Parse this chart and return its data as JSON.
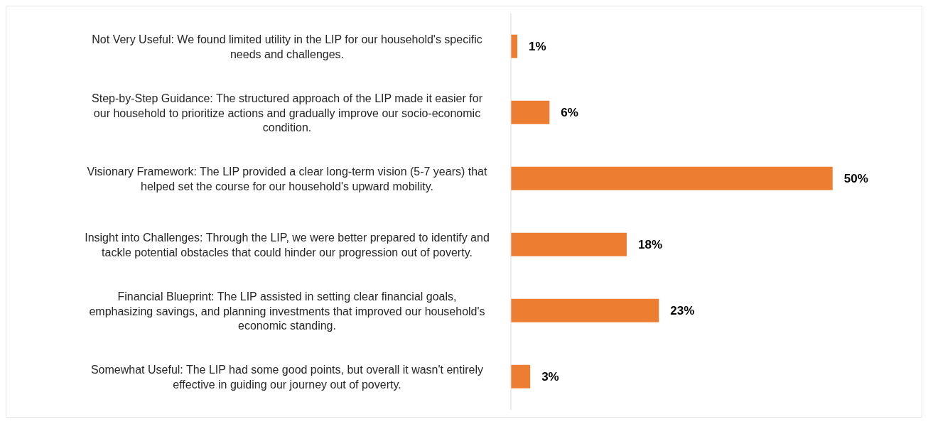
{
  "chart_data": {
    "type": "bar",
    "orientation": "horizontal",
    "categories": [
      "Not Very Useful: We found limited utility in the LIP for our household's specific needs and challenges.",
      "Step-by-Step Guidance: The structured approach of the LIP made it easier for our household to prioritize actions and gradually improve our socio-economic condition.",
      "Visionary Framework: The LIP provided a clear long-term vision (5-7 years) that helped set the course for our household's upward mobility.",
      "Insight into Challenges: Through the LIP, we were better prepared to identify and tackle potential obstacles that could hinder our progression out of poverty.",
      "Financial Blueprint: The LIP assisted in setting clear financial goals, emphasizing savings, and planning investments that improved our household's economic standing.",
      "Somewhat Useful: The LIP had some good points, but overall it wasn't entirely effective in guiding our journey out of poverty."
    ],
    "values": [
      1,
      6,
      50,
      18,
      23,
      3
    ],
    "value_labels": [
      "1%",
      "6%",
      "50%",
      "18%",
      "23%",
      "3%"
    ],
    "color": "#ed7d31",
    "grid": false
  }
}
